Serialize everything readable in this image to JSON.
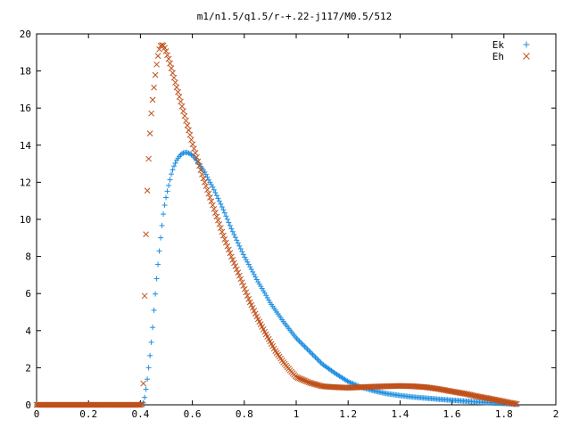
{
  "chart_data": {
    "type": "scatter",
    "title": "m1/n1.5/q1.5/r-+.22-j117/M0.5/512",
    "xlabel": "",
    "ylabel": "",
    "xlim": [
      0,
      2
    ],
    "ylim": [
      0,
      20
    ],
    "xticks": [
      "0",
      "0.2",
      "0.4",
      "0.6",
      "0.8",
      "1",
      "1.2",
      "1.4",
      "1.6",
      "1.8",
      "2"
    ],
    "yticks": [
      "0",
      "2",
      "4",
      "6",
      "8",
      "10",
      "12",
      "14",
      "16",
      "18",
      "20"
    ],
    "grid": false,
    "legend_position": "top-right",
    "series": [
      {
        "name": "Ek",
        "marker": "plus",
        "color": "#1f8fe0",
        "x": [
          0.0,
          0.05,
          0.1,
          0.15,
          0.2,
          0.25,
          0.3,
          0.35,
          0.4,
          0.41,
          0.415,
          0.42,
          0.425,
          0.43,
          0.435,
          0.44,
          0.445,
          0.45,
          0.455,
          0.46,
          0.465,
          0.47,
          0.475,
          0.48,
          0.485,
          0.49,
          0.5,
          0.51,
          0.52,
          0.53,
          0.54,
          0.55,
          0.56,
          0.57,
          0.58,
          0.59,
          0.6,
          0.61,
          0.62,
          0.63,
          0.64,
          0.65,
          0.66,
          0.68,
          0.7,
          0.72,
          0.75,
          0.78,
          0.8,
          0.82,
          0.85,
          0.88,
          0.9,
          0.95,
          1.0,
          1.05,
          1.1,
          1.15,
          1.2,
          1.25,
          1.3,
          1.35,
          1.4,
          1.45,
          1.5,
          1.55,
          1.6,
          1.65,
          1.7,
          1.75,
          1.8,
          1.82,
          1.84,
          1.85
        ],
        "y": [
          0,
          0,
          0,
          0,
          0,
          0,
          0,
          0,
          0,
          0.05,
          0.3,
          0.7,
          1.2,
          1.8,
          2.4,
          3.1,
          3.8,
          4.7,
          5.6,
          6.4,
          7.2,
          7.9,
          8.6,
          9.3,
          9.9,
          10.5,
          11.3,
          11.9,
          12.5,
          12.9,
          13.2,
          13.4,
          13.55,
          13.6,
          13.6,
          13.55,
          13.45,
          13.3,
          13.1,
          12.9,
          12.7,
          12.5,
          12.2,
          11.7,
          11.1,
          10.5,
          9.5,
          8.6,
          8.0,
          7.5,
          6.7,
          6.0,
          5.5,
          4.5,
          3.6,
          2.9,
          2.2,
          1.7,
          1.25,
          0.95,
          0.75,
          0.6,
          0.5,
          0.42,
          0.36,
          0.3,
          0.25,
          0.2,
          0.15,
          0.11,
          0.07,
          0.05,
          0.03,
          0.02
        ]
      },
      {
        "name": "Eh",
        "marker": "cross",
        "color": "#c0501a",
        "x": [
          0.0,
          0.05,
          0.1,
          0.15,
          0.2,
          0.25,
          0.3,
          0.35,
          0.4,
          0.41,
          0.415,
          0.42,
          0.425,
          0.43,
          0.435,
          0.44,
          0.445,
          0.45,
          0.455,
          0.46,
          0.465,
          0.47,
          0.475,
          0.48,
          0.485,
          0.49,
          0.495,
          0.5,
          0.51,
          0.52,
          0.53,
          0.54,
          0.55,
          0.56,
          0.57,
          0.58,
          0.6,
          0.62,
          0.64,
          0.66,
          0.68,
          0.7,
          0.72,
          0.75,
          0.78,
          0.8,
          0.82,
          0.85,
          0.88,
          0.9,
          0.92,
          0.95,
          0.98,
          1.0,
          1.05,
          1.1,
          1.15,
          1.2,
          1.25,
          1.3,
          1.35,
          1.4,
          1.45,
          1.5,
          1.55,
          1.6,
          1.65,
          1.7,
          1.75,
          1.8,
          1.82,
          1.84,
          1.85
        ],
        "y": [
          0,
          0,
          0,
          0,
          0,
          0,
          0,
          0,
          0,
          0.05,
          5.0,
          8.5,
          11.0,
          12.8,
          14.2,
          15.4,
          16.2,
          16.8,
          17.5,
          18.1,
          18.6,
          19.0,
          19.3,
          19.4,
          19.4,
          19.35,
          19.2,
          19.0,
          18.6,
          18.1,
          17.6,
          17.1,
          16.6,
          16.1,
          15.6,
          15.1,
          14.1,
          13.2,
          12.3,
          11.5,
          10.7,
          9.9,
          9.1,
          8.0,
          7.0,
          6.3,
          5.6,
          4.7,
          3.9,
          3.4,
          2.9,
          2.3,
          1.8,
          1.5,
          1.2,
          1.0,
          0.95,
          0.92,
          0.95,
          0.98,
          1.0,
          1.02,
          1.0,
          0.95,
          0.85,
          0.72,
          0.6,
          0.45,
          0.32,
          0.18,
          0.12,
          0.07,
          0.04
        ]
      }
    ]
  }
}
